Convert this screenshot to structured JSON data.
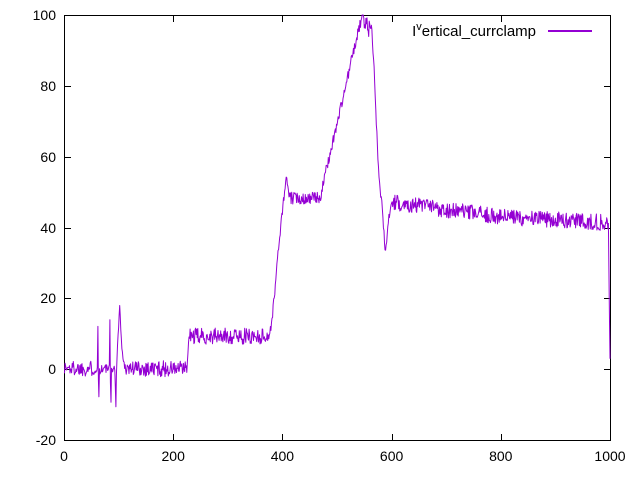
{
  "legend": {
    "prefix": "I",
    "sup": "v",
    "rest": "ertical_currclamp"
  },
  "chart_data": {
    "type": "line",
    "title": "",
    "xlabel": "",
    "ylabel": "",
    "xlim": [
      0,
      1000
    ],
    "ylim": [
      -20,
      100
    ],
    "x_ticks": [
      0,
      200,
      400,
      600,
      800,
      1000
    ],
    "y_ticks": [
      -20,
      0,
      20,
      40,
      60,
      80,
      100
    ],
    "grid": false,
    "legend_position": "top-right-inside",
    "background_color": "#ffffff",
    "axis_color": "#000000",
    "series": [
      {
        "name": "Iᵛertical_currclamp",
        "color": "#9400d3",
        "description": "Noisy signal: ~0 until x=225 with spikes near x=60-105 (peaks +12/+13/+18, dips to -10), steps to ~9 until x=376, ramps to 55 at x=408, settles ~48 until x=469, climbs to 100 at x=546-564, drops to 33 at x=588, recovers to ~47 and slowly decays to ~41 by x=1000, final drop to ~3",
        "keypoints": [
          [
            0,
            0.3
          ],
          [
            59,
            0.2
          ],
          [
            61,
            0
          ],
          [
            62,
            12
          ],
          [
            63,
            -3
          ],
          [
            64,
            -8
          ],
          [
            65,
            0
          ],
          [
            82,
            0.2
          ],
          [
            83,
            0.5
          ],
          [
            84,
            13
          ],
          [
            85,
            -4
          ],
          [
            86,
            -9.5
          ],
          [
            87,
            0.3
          ],
          [
            93,
            0
          ],
          [
            95,
            -10
          ],
          [
            96,
            -1
          ],
          [
            97,
            3
          ],
          [
            99,
            9
          ],
          [
            101,
            16
          ],
          [
            102,
            18
          ],
          [
            103,
            15
          ],
          [
            104,
            11
          ],
          [
            106,
            6
          ],
          [
            108,
            3
          ],
          [
            111,
            1
          ],
          [
            114,
            0.3
          ],
          [
            225,
            0
          ],
          [
            227,
            4
          ],
          [
            229,
            9.3
          ],
          [
            376,
            9.3
          ],
          [
            381,
            14
          ],
          [
            386,
            22
          ],
          [
            391,
            31
          ],
          [
            396,
            39
          ],
          [
            401,
            46
          ],
          [
            404,
            50
          ],
          [
            406,
            52.5
          ],
          [
            408,
            54.5
          ],
          [
            410,
            51
          ],
          [
            412,
            48.8
          ],
          [
            415,
            48.3
          ],
          [
            469,
            48.3
          ],
          [
            480,
            56
          ],
          [
            492,
            64
          ],
          [
            504,
            72
          ],
          [
            516,
            80
          ],
          [
            526,
            87
          ],
          [
            534,
            92
          ],
          [
            540,
            96
          ],
          [
            546,
            99.5
          ],
          [
            549,
            100
          ],
          [
            551,
            96
          ],
          [
            554,
            99
          ],
          [
            557,
            94.5
          ],
          [
            560,
            98
          ],
          [
            564,
            95
          ],
          [
            568,
            85
          ],
          [
            572,
            70
          ],
          [
            576,
            57
          ],
          [
            580,
            49
          ],
          [
            583,
            46
          ],
          [
            588,
            33
          ],
          [
            591,
            36
          ],
          [
            594,
            42
          ],
          [
            598,
            45.5
          ],
          [
            603,
            47
          ],
          [
            650,
            46.3
          ],
          [
            700,
            45
          ],
          [
            750,
            44
          ],
          [
            800,
            43
          ],
          [
            850,
            42.6
          ],
          [
            900,
            42.2
          ],
          [
            950,
            41.8
          ],
          [
            997,
            41.3
          ],
          [
            998,
            28
          ],
          [
            999,
            14
          ],
          [
            1000,
            3
          ]
        ],
        "noise_segments": [
          [
            0,
            59,
            2.2
          ],
          [
            59,
            66,
            1.0
          ],
          [
            66,
            82,
            1.5
          ],
          [
            82,
            97,
            1.0
          ],
          [
            97,
            114,
            1.0
          ],
          [
            114,
            225,
            2.3
          ],
          [
            225,
            230,
            1.0
          ],
          [
            230,
            376,
            2.3
          ],
          [
            376,
            415,
            1.2
          ],
          [
            415,
            469,
            1.7
          ],
          [
            469,
            546,
            1.5
          ],
          [
            546,
            564,
            1.8
          ],
          [
            564,
            603,
            1.0
          ],
          [
            603,
            997,
            2.3
          ],
          [
            997,
            1000,
            0.5
          ]
        ]
      }
    ]
  }
}
